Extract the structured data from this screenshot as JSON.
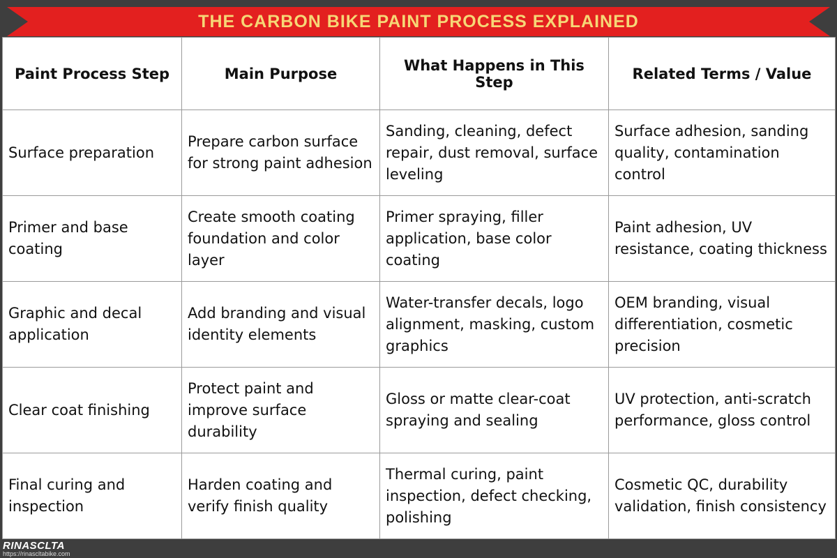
{
  "header": {
    "title": "THE CARBON BIKE PAINT PROCESS EXPLAINED"
  },
  "table": {
    "headers": [
      "Paint Process Step",
      "Main Purpose",
      "What Happens in This Step",
      "Related Terms / Value"
    ],
    "rows": [
      [
        "Surface preparation",
        "Prepare carbon surface for strong paint adhesion",
        "Sanding, cleaning, defect repair, dust removal, surface leveling",
        "Surface adhesion, sanding quality, contamination control"
      ],
      [
        "Primer and base coating",
        "Create smooth coating foundation and color layer",
        "Primer spraying, filler application, base color coating",
        "Paint adhesion, UV resistance, coating thickness"
      ],
      [
        "Graphic and decal application",
        "Add branding and visual identity elements",
        "Water-transfer decals, logo alignment, masking, custom graphics",
        "OEM branding, visual differentiation, cosmetic precision"
      ],
      [
        "Clear coat finishing",
        "Protect paint and improve surface durability",
        "Gloss or matte clear-coat spraying and sealing",
        "UV protection, anti-scratch performance, gloss control"
      ],
      [
        "Final curing and inspection",
        "Harden coating and verify finish quality",
        "Thermal curing, paint inspection, defect checking, polishing",
        "Cosmetic QC, durability validation, finish consistency"
      ]
    ]
  },
  "footer": {
    "brand": "RINASCLTA",
    "url": "https://rinascltabike.com"
  }
}
